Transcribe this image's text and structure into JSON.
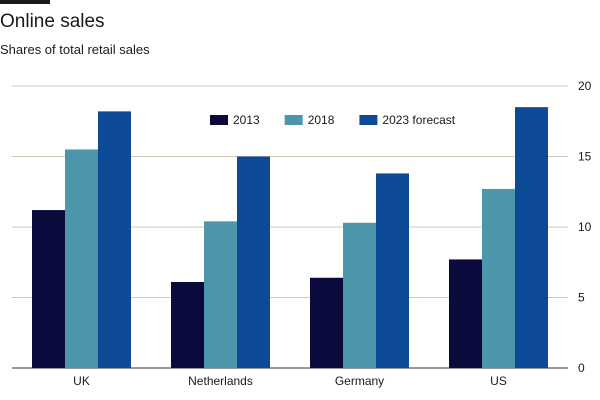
{
  "header": {
    "title": "Online sales",
    "subtitle": "Shares of total retail sales"
  },
  "chart_data": {
    "type": "bar",
    "title": "Online sales",
    "subtitle": "Shares of total retail sales",
    "xlabel": "",
    "ylabel": "",
    "categories": [
      "UK",
      "Netherlands",
      "Germany",
      "US"
    ],
    "series": [
      {
        "name": "2013",
        "color": "#0a0a3c",
        "values": [
          11.2,
          6.1,
          6.4,
          7.7
        ]
      },
      {
        "name": "2018",
        "color": "#4d95aa",
        "values": [
          15.5,
          10.4,
          10.3,
          12.7
        ]
      },
      {
        "name": "2023 forecast",
        "color": "#0d4a96",
        "values": [
          18.2,
          15.0,
          13.8,
          18.5
        ]
      }
    ],
    "ylim": [
      0,
      20
    ],
    "yticks": [
      0,
      5,
      10,
      15,
      20
    ],
    "ytick_side": "right",
    "grid": "horizontal",
    "legend_position": "top-center"
  }
}
